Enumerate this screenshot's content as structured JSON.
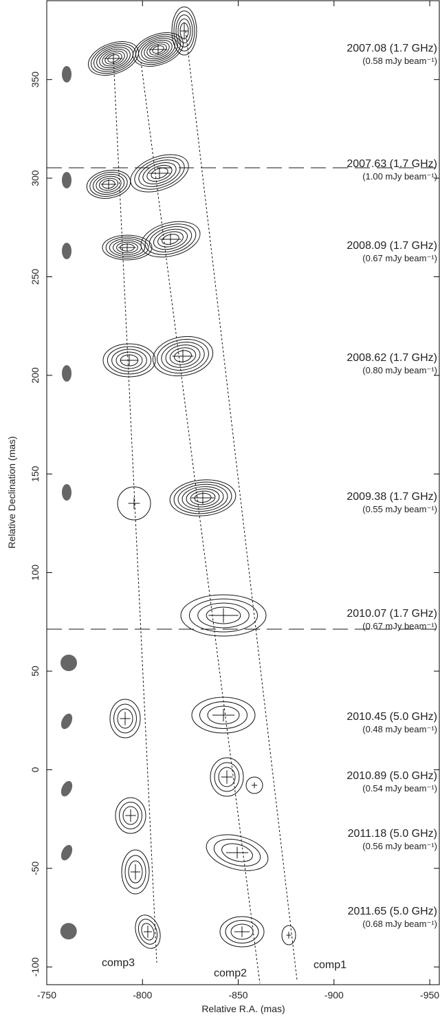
{
  "chart_data": {
    "type": "contour",
    "xlabel": "Relative R.A. (mas)",
    "ylabel": "Relative Declination (mas)",
    "xlim": [
      -750,
      -955
    ],
    "ylim": [
      -109,
      390
    ],
    "xticks": [
      -750,
      -800,
      -850,
      -900,
      -950
    ],
    "yticks": [
      -100,
      -50,
      0,
      50,
      100,
      150,
      200,
      250,
      300,
      350
    ],
    "epochs": [
      {
        "label": "2007.08 (1.7 GHz)",
        "noise": "(0.58 mJy beam⁻¹)"
      },
      {
        "label": "2007.63 (1.7 GHz)",
        "noise": "(1.00 mJy beam⁻¹)"
      },
      {
        "label": "2008.09 (1.7 GHz)",
        "noise": "(0.67 mJy beam⁻¹)"
      },
      {
        "label": "2008.62 (1.7 GHz)",
        "noise": "(0.80 mJy beam⁻¹)"
      },
      {
        "label": "2009.38 (1.7 GHz)",
        "noise": "(0.55 mJy beam⁻¹)"
      },
      {
        "label": "2010.07 (1.7 GHz)",
        "noise": "(0.67 mJy beam⁻¹)"
      },
      {
        "label": "2010.45 (5.0 GHz)",
        "noise": "(0.48 mJy beam⁻¹)"
      },
      {
        "label": "2010.89 (5.0 GHz)",
        "noise": "(0.54 mJy beam⁻¹)"
      },
      {
        "label": "2011.18 (5.0 GHz)",
        "noise": "(0.56 mJy beam⁻¹)"
      },
      {
        "label": "2011.65 (5.0 GHz)",
        "noise": "(0.68 mJy beam⁻¹)"
      }
    ],
    "components": [
      "comp3",
      "comp2",
      "comp1"
    ]
  }
}
